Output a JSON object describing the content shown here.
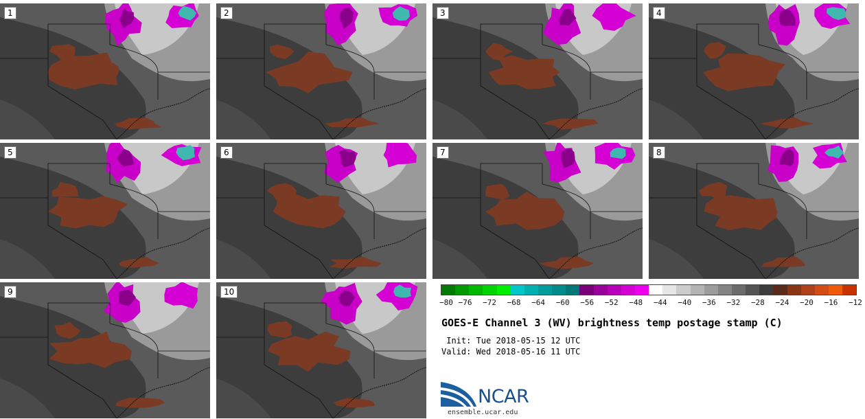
{
  "panels": [
    {
      "label": "1"
    },
    {
      "label": "2"
    },
    {
      "label": "3"
    },
    {
      "label": "4"
    },
    {
      "label": "5"
    },
    {
      "label": "6"
    },
    {
      "label": "7"
    },
    {
      "label": "8"
    },
    {
      "label": "9"
    },
    {
      "label": "10"
    }
  ],
  "colorbar": {
    "colors": [
      "#007a00",
      "#009a00",
      "#00b800",
      "#00d400",
      "#00ee00",
      "#00c8c8",
      "#00b0b0",
      "#009c9c",
      "#008a8a",
      "#007878",
      "#7a007a",
      "#9a009a",
      "#b800b8",
      "#d400d4",
      "#ee00ee",
      "#ffffff",
      "#e6e6e6",
      "#cccccc",
      "#b4b4b4",
      "#9c9c9c",
      "#848484",
      "#6c6c6c",
      "#545454",
      "#3c3c3c",
      "#5a2a1a",
      "#8a3515",
      "#b0401a",
      "#d24c14",
      "#ee5a0a",
      "#c83200"
    ],
    "ticks": [
      "−80",
      "−76",
      "−72",
      "−68",
      "−64",
      "−60",
      "−56",
      "−52",
      "−48",
      "−44",
      "−40",
      "−36",
      "−32",
      "−28",
      "−24",
      "−20",
      "−16",
      "−12"
    ]
  },
  "title": "GOES-E Channel 3 (WV) brightness temp postage stamp (C)",
  "init": " Init: Tue 2018-05-15 12 UTC",
  "valid": "Valid: Wed 2018-05-16 11 UTC",
  "logo": {
    "text": "NCAR",
    "url": "ensemble.ucar.edu"
  }
}
